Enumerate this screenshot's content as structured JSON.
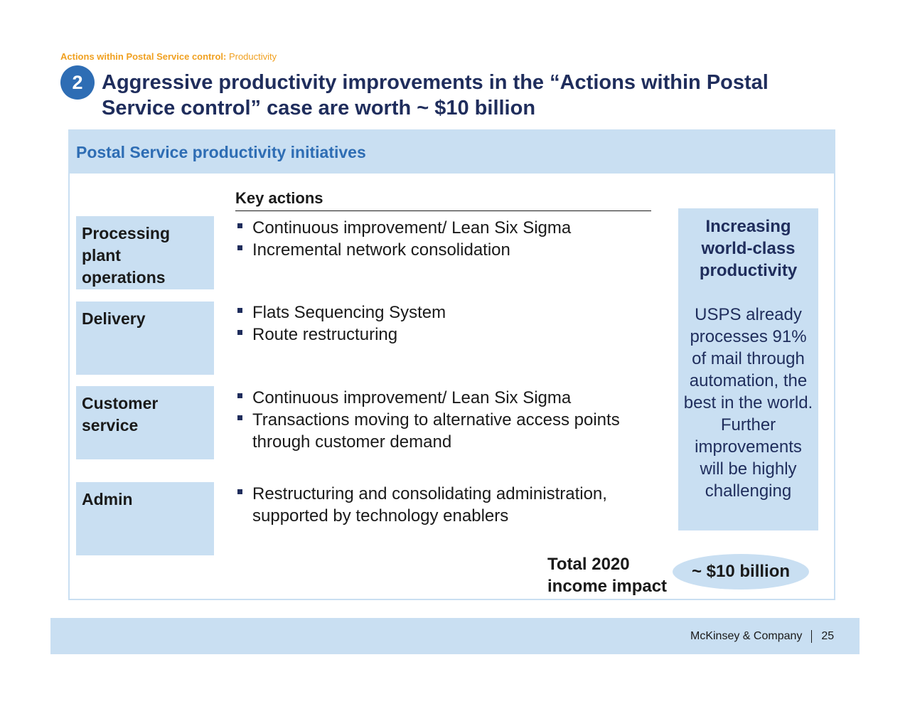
{
  "tracker": {
    "bold": "Actions within Postal Service control:",
    "normal": "Productivity"
  },
  "title": {
    "number": "2",
    "line1": "Aggressive productivity improvements in the “Actions within Postal",
    "line2": "Service control” case are worth ~ $10 billion"
  },
  "panel": {
    "header": "Postal Service productivity initiatives",
    "key_actions_label": "Key actions"
  },
  "categories": [
    {
      "name": "Processing plant operations",
      "actions": [
        "Continuous improvement/ Lean Six Sigma",
        "Incremental network consolidation"
      ]
    },
    {
      "name": "Delivery",
      "actions": [
        "Flats Sequencing System",
        "Route restructuring"
      ]
    },
    {
      "name": "Customer service",
      "actions": [
        "Continuous improvement/ Lean Six Sigma",
        "Transactions moving to alternative access points through customer demand"
      ]
    },
    {
      "name": "Admin",
      "actions": [
        "Restructuring and consolidating administration, supported by technology enablers"
      ]
    }
  ],
  "side": {
    "heading": "Increasing world-class productivity",
    "body": "USPS already processes 91% of mail through automation, the best in the world. Further improvements will be highly challenging"
  },
  "total": {
    "label": "Total 2020 income impact",
    "value": "~ $10 billion"
  },
  "footer": {
    "company": "McKinsey & Company",
    "page": "25"
  },
  "colors": {
    "navy": "#1f2d5c",
    "blue": "#2e6db4",
    "light_blue": "#c9dff2",
    "orange": "#f0a020"
  }
}
